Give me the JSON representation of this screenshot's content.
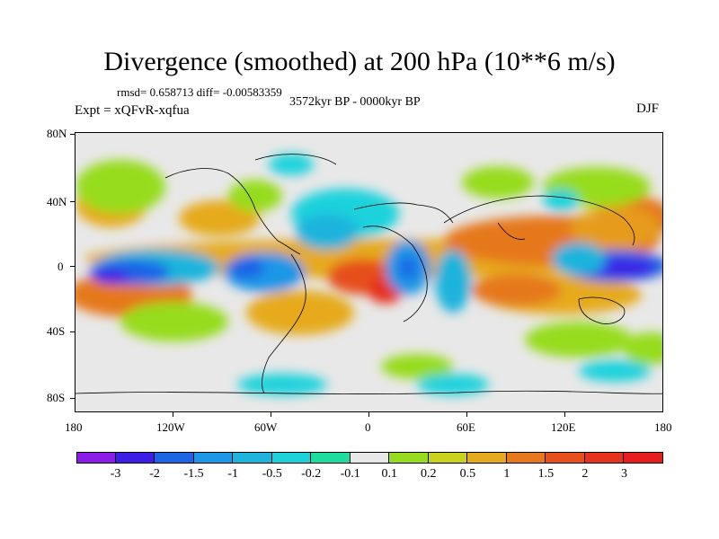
{
  "title": "Divergence (smoothed) at 200 hPa (10**6 m/s)",
  "stats": "rmsd= 0.658713 diff= -0.00583359",
  "period": "3572kyr BP - 0000kyr BP",
  "experiment": "Expt = xQFvR-xqfua",
  "season": "DJF",
  "y_axis_labels": [
    "80N",
    "40N",
    "0",
    "40S",
    "80S"
  ],
  "x_axis_labels": [
    "180",
    "120W",
    "60W",
    "0",
    "60E",
    "120E",
    "180"
  ],
  "colorbar": {
    "labels": [
      "-3",
      "-2",
      "-1.5",
      "-1",
      "-0.5",
      "-0.2",
      "-0.1",
      "0.1",
      "0.2",
      "0.5",
      "1",
      "1.5",
      "2",
      "3"
    ],
    "colors": [
      "#8a1ee6",
      "#3c1ee6",
      "#1e64e6",
      "#1e96e6",
      "#1eb4dc",
      "#1ed2dc",
      "#1edca0",
      "#e8e8e8",
      "#96dc1e",
      "#c8d21e",
      "#e6aa1e",
      "#e6781e",
      "#e6501e",
      "#e6321e",
      "#e61e1e"
    ]
  }
}
